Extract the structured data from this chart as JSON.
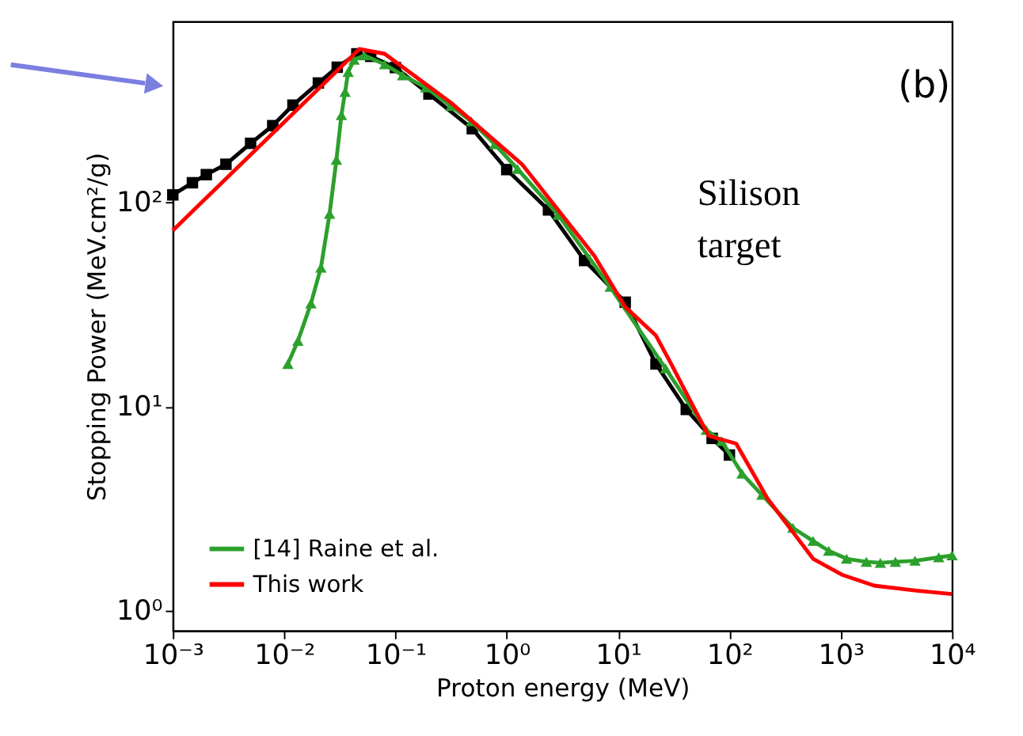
{
  "chart_data": {
    "type": "line",
    "xlabel": "Proton energy (MeV)",
    "ylabel": "Stopping Power (MeV.cm²/g)",
    "log": "xy",
    "grid": false,
    "legend": "bottom left",
    "xlim": [
      0.001,
      10000
    ],
    "ylim": [
      0.8,
      770
    ],
    "xticks": [
      {
        "value": 0.001,
        "label": "10⁻³"
      },
      {
        "value": 0.01,
        "label": "10⁻²"
      },
      {
        "value": 0.1,
        "label": "10⁻¹"
      },
      {
        "value": 1,
        "label": "10⁰"
      },
      {
        "value": 10,
        "label": "10¹"
      },
      {
        "value": 100,
        "label": "10²"
      },
      {
        "value": 1000,
        "label": "10³"
      },
      {
        "value": 10000,
        "label": "10⁴"
      }
    ],
    "yticks": [
      {
        "value": 1,
        "label": "10⁰"
      },
      {
        "value": 10,
        "label": "10¹"
      },
      {
        "value": 100,
        "label": "10²"
      }
    ],
    "annotations": [
      "(b)",
      "Silison\ntarget"
    ],
    "series": [
      {
        "color": "#000000",
        "marker": "square",
        "x": [
          0.001,
          0.0015,
          0.002,
          0.003,
          0.005,
          0.0079,
          0.012,
          0.0203,
          0.03,
          0.045,
          0.06,
          0.1,
          0.2,
          0.49,
          1,
          2.37,
          5,
          11.6,
          21.9,
          41,
          70,
          100
        ],
        "values": [
          109,
          125,
          137,
          154,
          195,
          238,
          300,
          385,
          460,
          535,
          520,
          458,
          340,
          230,
          145,
          92,
          52,
          32.5,
          16.2,
          9.7,
          7,
          5.8
        ]
      },
      {
        "name": "[14] Raine et al.",
        "color": "#2ca02c",
        "marker": "triangle",
        "x": [
          0.0108,
          0.0133,
          0.0174,
          0.0214,
          0.0256,
          0.0295,
          0.0327,
          0.0353,
          0.0376,
          0.0425,
          0.0525,
          0.08,
          0.116,
          0.187,
          0.316,
          0.48,
          0.78,
          1.25,
          2.9,
          8.5,
          26.7,
          62,
          85,
          130,
          196,
          372,
          565,
          780,
          1130,
          1700,
          2270,
          3100,
          4650,
          7600,
          10000
        ],
        "values": [
          16.2,
          21,
          32,
          48,
          88,
          162,
          268,
          348,
          436,
          500,
          526,
          475,
          420,
          366,
          297,
          250,
          193,
          146,
          87,
          38.6,
          15.4,
          7.7,
          6.8,
          4.7,
          3.7,
          2.55,
          2.2,
          1.97,
          1.8,
          1.74,
          1.72,
          1.74,
          1.76,
          1.83,
          1.87
        ]
      },
      {
        "name": "This work",
        "color": "#ff0000",
        "marker": "none",
        "x": [
          0.001,
          0.0474,
          0.08,
          0.316,
          1.37,
          6.1,
          11.6,
          21.9,
          30,
          65,
          115,
          220,
          565,
          1040,
          2000,
          4650,
          10000
        ],
        "values": [
          73,
          565,
          535,
          308,
          154,
          55,
          30.8,
          22.3,
          16.2,
          7.2,
          6.6,
          3.55,
          1.8,
          1.5,
          1.33,
          1.26,
          1.21
        ]
      }
    ]
  }
}
